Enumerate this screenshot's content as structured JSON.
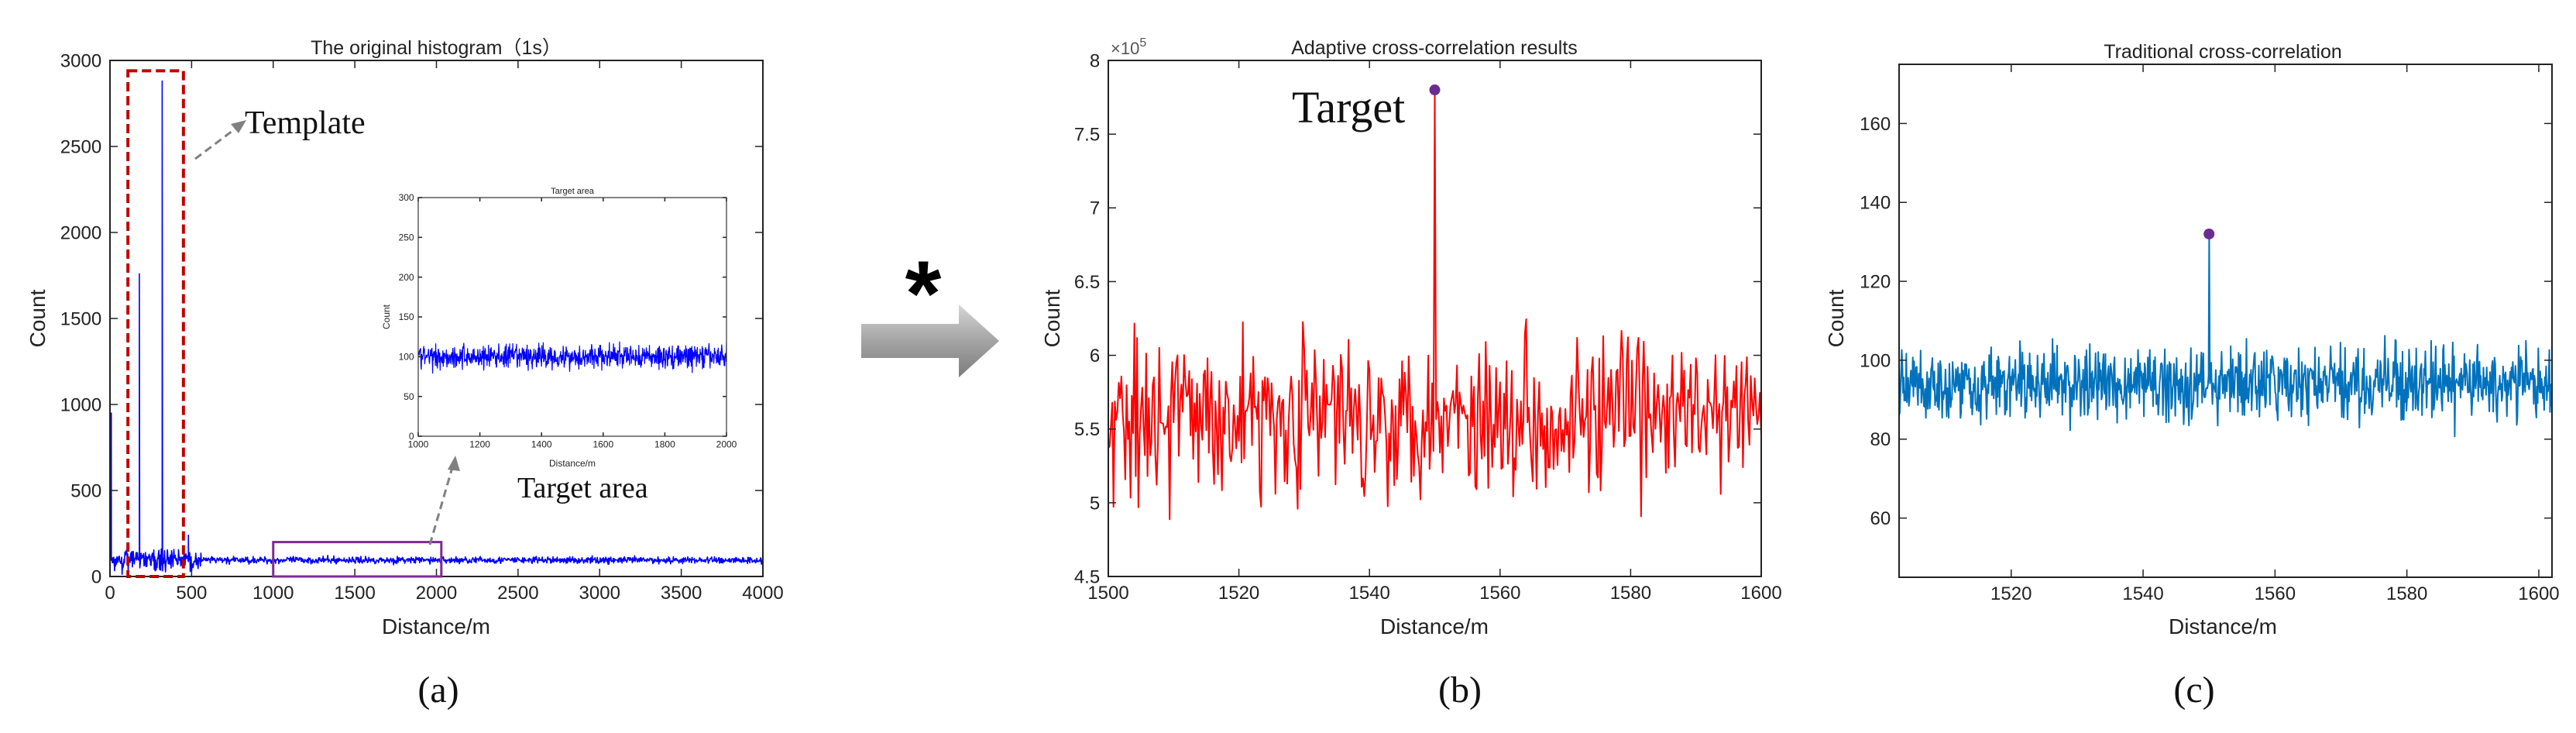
{
  "colors": {
    "a_line": "#0000ff",
    "b_line": "#ff0000",
    "c_line": "#0072bd",
    "peak_marker": "#6a2c91",
    "template_box": "#c00000",
    "target_box": "#7b2c91",
    "annotation": "#808080",
    "arrow": "#9a9a9a"
  },
  "annotations": {
    "template": "Template",
    "target_area": "Target area",
    "target": "Target",
    "operator": "*"
  },
  "panel_labels": [
    "(a)",
    "(b)",
    "(c)"
  ],
  "chart_data": [
    {
      "id": "a",
      "type": "line",
      "title": "The original histogram（1s）",
      "xlabel": "Distance/m",
      "ylabel": "Count",
      "xlim": [
        0,
        4000
      ],
      "ylim": [
        0,
        3000
      ],
      "xticks": [
        0,
        500,
        1000,
        1500,
        2000,
        2500,
        3000,
        3500,
        4000
      ],
      "yticks": [
        0,
        500,
        1000,
        1500,
        2000,
        2500,
        3000
      ],
      "grid": false,
      "baseline": 95,
      "spikes": [
        {
          "x": 8,
          "y": 950
        },
        {
          "x": 180,
          "y": 1760
        },
        {
          "x": 320,
          "y": 2880
        },
        {
          "x": 480,
          "y": 240
        }
      ],
      "template_region": {
        "x": [
          110,
          450
        ],
        "y": [
          0,
          2940
        ]
      },
      "target_region": {
        "x": [
          1000,
          2030
        ],
        "y": [
          0,
          200
        ]
      }
    },
    {
      "id": "a_inset",
      "type": "line",
      "title": "Target area",
      "xlabel": "Distance/m",
      "ylabel": "Count",
      "xlim": [
        1000,
        2000
      ],
      "ylim": [
        0,
        300
      ],
      "xticks": [
        1000,
        1200,
        1400,
        1600,
        1800,
        2000
      ],
      "yticks": [
        0,
        50,
        100,
        150,
        200,
        250,
        300
      ],
      "baseline": 100
    },
    {
      "id": "b",
      "type": "line",
      "title": "Adaptive cross-correlation results",
      "xlabel": "Distance/m",
      "ylabel": "Count",
      "y_exponent": "×10",
      "y_exponent_power": "5",
      "xlim": [
        1500,
        1600
      ],
      "ylim": [
        4.5,
        8
      ],
      "xticks": [
        1500,
        1520,
        1540,
        1560,
        1580,
        1600
      ],
      "yticks": [
        4.5,
        5,
        5.5,
        6,
        6.5,
        7,
        7.5,
        8
      ],
      "baseline": 5.6,
      "peak": {
        "x": 1550,
        "y": 7.8
      }
    },
    {
      "id": "c",
      "type": "line",
      "title": "Traditional cross-correlation",
      "xlabel": "Distance/m",
      "ylabel": "Count",
      "xlim": [
        1503,
        1602
      ],
      "ylim": [
        45,
        175
      ],
      "xticks": [
        1520,
        1540,
        1560,
        1580,
        1600
      ],
      "yticks": [
        60,
        80,
        100,
        120,
        140,
        160
      ],
      "baseline": 94,
      "peak": {
        "x": 1550,
        "y": 132
      }
    }
  ]
}
